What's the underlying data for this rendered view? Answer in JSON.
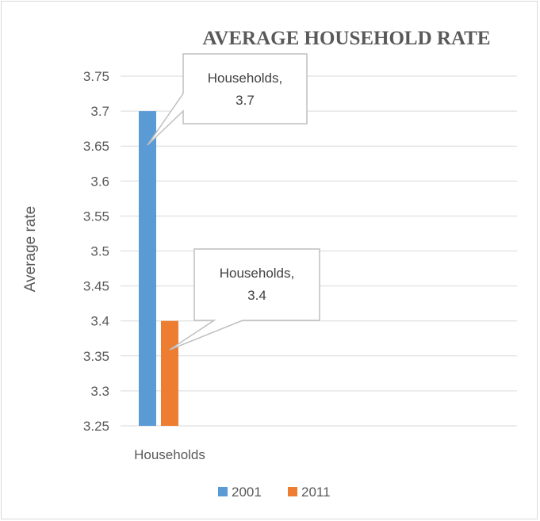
{
  "chart_data": {
    "type": "bar",
    "title": "AVERAGE HOUSEHOLD RATE",
    "ylabel": "Average rate",
    "xlabel": "",
    "categories": [
      "Households"
    ],
    "series": [
      {
        "name": "2001",
        "values": [
          3.7
        ],
        "color": "#5b9bd5"
      },
      {
        "name": "2011",
        "values": [
          3.4
        ],
        "color": "#ed7d31"
      }
    ],
    "ylim": [
      3.25,
      3.75
    ],
    "ytick_step": 0.05,
    "yticks": [
      "3.25",
      "3.3",
      "3.35",
      "3.4",
      "3.45",
      "3.5",
      "3.55",
      "3.6",
      "3.65",
      "3.7",
      "3.75"
    ],
    "grid": true,
    "legend_position": "bottom",
    "data_labels": [
      {
        "line1": "Households,",
        "line2": "3.7"
      },
      {
        "line1": "Households,",
        "line2": "3.4"
      }
    ]
  }
}
